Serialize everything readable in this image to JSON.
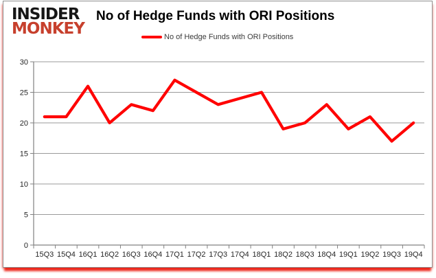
{
  "brand": {
    "line1": "INSIDER",
    "line2": "MONKEY",
    "monkey_color": "#c7402d"
  },
  "chart_data": {
    "type": "line",
    "title": "No of Hedge Funds with ORI Positions",
    "categories": [
      "15Q3",
      "15Q4",
      "16Q1",
      "16Q2",
      "16Q3",
      "16Q4",
      "17Q1",
      "17Q2",
      "17Q3",
      "17Q4",
      "18Q1",
      "18Q2",
      "18Q3",
      "18Q4",
      "19Q1",
      "19Q2",
      "19Q3",
      "19Q4"
    ],
    "series": [
      {
        "name": "No of Hedge Funds with ORI Positions",
        "color": "#ff0000",
        "values": [
          21,
          21,
          26,
          20,
          23,
          22,
          27,
          25,
          23,
          24,
          25,
          19,
          20,
          23,
          19,
          21,
          17,
          20
        ]
      }
    ],
    "xlabel": "",
    "ylabel": "",
    "ylim": [
      0,
      30
    ],
    "ytick_step": 5,
    "yticks": [
      0,
      5,
      10,
      15,
      20,
      25,
      30
    ],
    "grid": "horizontal",
    "legend_position": "top-center",
    "axis_color": "#808080",
    "grid_color": "#9a9a9a",
    "label_color": "#262626"
  }
}
